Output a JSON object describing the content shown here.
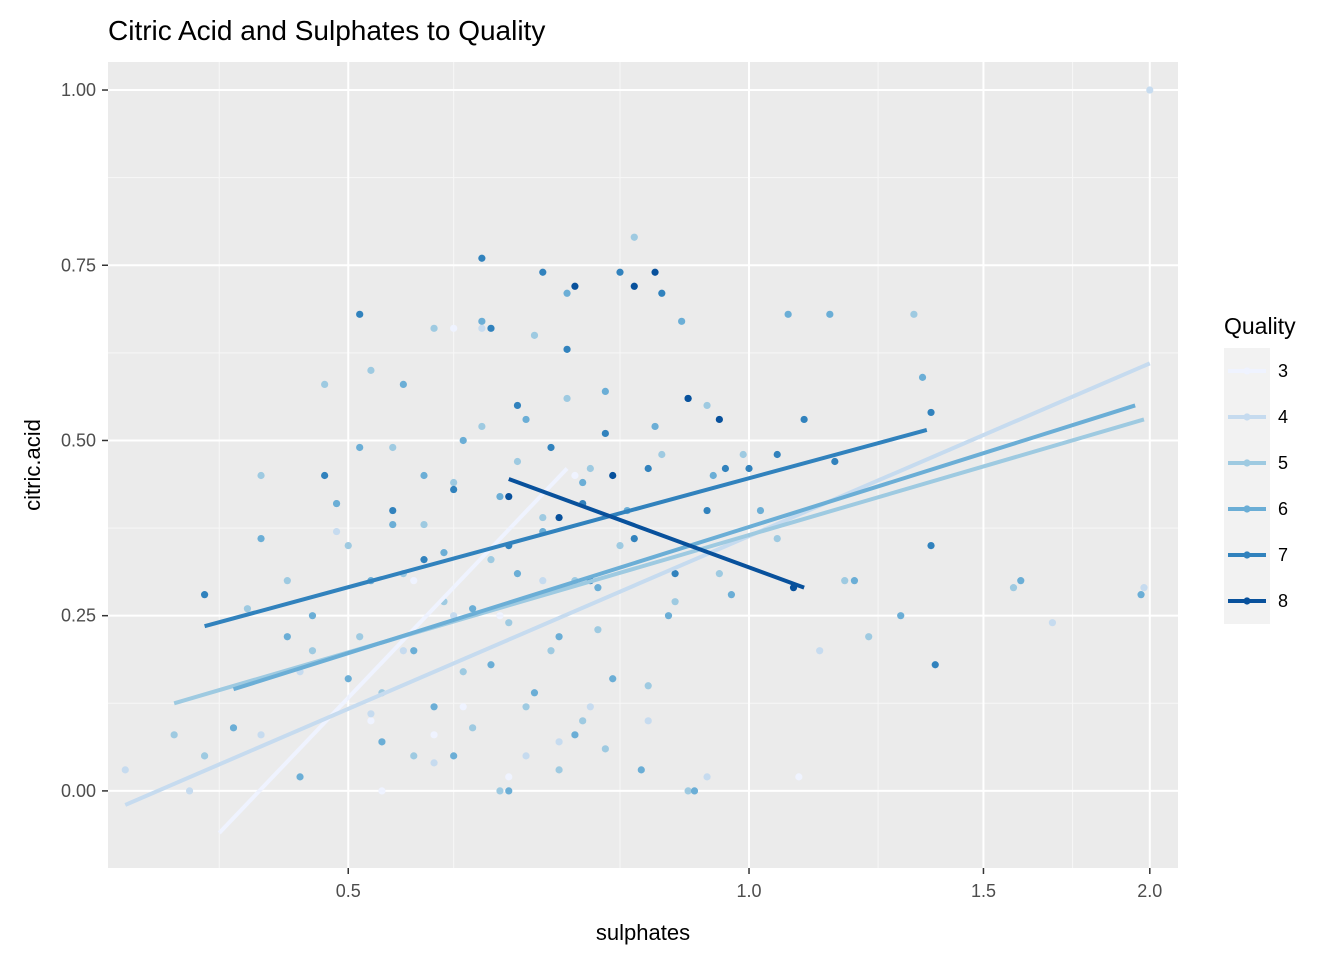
{
  "chart_data": {
    "type": "scatter",
    "title": "Citric Acid and Sulphates to Quality",
    "xlabel": "sulphates",
    "ylabel": "citric.acid",
    "x_scale": "log10",
    "xlim": [
      0.33,
      2.1
    ],
    "ylim": [
      -0.11,
      1.04
    ],
    "x_ticks": [
      0.5,
      1.0,
      1.5,
      2.0
    ],
    "x_tick_labels": [
      "0.5",
      "1.0",
      "1.5",
      "2.0"
    ],
    "x_minor_gridlines": [
      0.4,
      0.6,
      0.8,
      1.25,
      1.75
    ],
    "y_ticks": [
      0.0,
      0.25,
      0.5,
      0.75,
      1.0
    ],
    "y_tick_labels": [
      "0.00",
      "0.25",
      "0.50",
      "0.75",
      "1.00"
    ],
    "grid": true,
    "legend": {
      "title": "Quality",
      "position": "right",
      "entries": [
        "3",
        "4",
        "5",
        "6",
        "7",
        "8"
      ]
    },
    "series": [
      {
        "name": "3",
        "color": "#eff3ff",
        "trend": {
          "x1": 0.4,
          "y1": -0.06,
          "x2": 0.73,
          "y2": 0.46
        },
        "points": [
          [
            0.53,
            0.0
          ],
          [
            0.58,
            0.08
          ],
          [
            0.61,
            0.12
          ],
          [
            0.56,
            0.3
          ],
          [
            0.66,
            0.02
          ],
          [
            0.65,
            0.25
          ],
          [
            0.6,
            0.66
          ],
          [
            0.52,
            0.1
          ],
          [
            0.74,
            0.45
          ],
          [
            1.09,
            0.02
          ]
        ]
      },
      {
        "name": "4",
        "color": "#c6dbef",
        "trend": {
          "x1": 0.34,
          "y1": -0.02,
          "x2": 2.0,
          "y2": 0.61
        },
        "points": [
          [
            0.34,
            0.03
          ],
          [
            0.38,
            0.0
          ],
          [
            0.39,
            0.05
          ],
          [
            0.43,
            0.08
          ],
          [
            0.46,
            0.17
          ],
          [
            0.49,
            0.37
          ],
          [
            0.52,
            0.11
          ],
          [
            0.55,
            0.2
          ],
          [
            0.58,
            0.04
          ],
          [
            0.6,
            0.25
          ],
          [
            0.63,
            0.66
          ],
          [
            0.68,
            0.05
          ],
          [
            0.7,
            0.3
          ],
          [
            0.72,
            0.07
          ],
          [
            0.76,
            0.12
          ],
          [
            0.84,
            0.1
          ],
          [
            0.93,
            0.02
          ],
          [
            1.13,
            0.2
          ],
          [
            1.69,
            0.24
          ],
          [
            1.98,
            0.29
          ],
          [
            2.0,
            1.0
          ]
        ]
      },
      {
        "name": "5",
        "color": "#9ecae1",
        "trend": {
          "x1": 0.37,
          "y1": 0.125,
          "x2": 1.98,
          "y2": 0.53
        },
        "points": [
          [
            0.37,
            0.08
          ],
          [
            0.39,
            0.05
          ],
          [
            0.42,
            0.26
          ],
          [
            0.43,
            0.45
          ],
          [
            0.45,
            0.3
          ],
          [
            0.47,
            0.2
          ],
          [
            0.48,
            0.58
          ],
          [
            0.49,
            0.41
          ],
          [
            0.5,
            0.35
          ],
          [
            0.51,
            0.22
          ],
          [
            0.52,
            0.6
          ],
          [
            0.53,
            0.14
          ],
          [
            0.54,
            0.49
          ],
          [
            0.55,
            0.31
          ],
          [
            0.56,
            0.05
          ],
          [
            0.57,
            0.38
          ],
          [
            0.58,
            0.66
          ],
          [
            0.59,
            0.27
          ],
          [
            0.6,
            0.44
          ],
          [
            0.61,
            0.17
          ],
          [
            0.62,
            0.09
          ],
          [
            0.63,
            0.52
          ],
          [
            0.64,
            0.33
          ],
          [
            0.65,
            0.0
          ],
          [
            0.66,
            0.24
          ],
          [
            0.67,
            0.47
          ],
          [
            0.68,
            0.12
          ],
          [
            0.69,
            0.65
          ],
          [
            0.7,
            0.39
          ],
          [
            0.71,
            0.2
          ],
          [
            0.72,
            0.03
          ],
          [
            0.73,
            0.56
          ],
          [
            0.74,
            0.3
          ],
          [
            0.75,
            0.1
          ],
          [
            0.76,
            0.46
          ],
          [
            0.77,
            0.23
          ],
          [
            0.78,
            0.06
          ],
          [
            0.8,
            0.35
          ],
          [
            0.82,
            0.79
          ],
          [
            0.84,
            0.15
          ],
          [
            0.86,
            0.48
          ],
          [
            0.88,
            0.27
          ],
          [
            0.9,
            0.0
          ],
          [
            0.93,
            0.55
          ],
          [
            0.95,
            0.31
          ],
          [
            0.99,
            0.48
          ],
          [
            1.05,
            0.36
          ],
          [
            1.18,
            0.3
          ],
          [
            1.23,
            0.22
          ],
          [
            1.33,
            0.68
          ],
          [
            1.58,
            0.29
          ]
        ]
      },
      {
        "name": "6",
        "color": "#6baed6",
        "trend": {
          "x1": 0.41,
          "y1": 0.145,
          "x2": 1.95,
          "y2": 0.55
        },
        "points": [
          [
            0.41,
            0.09
          ],
          [
            0.43,
            0.36
          ],
          [
            0.45,
            0.22
          ],
          [
            0.46,
            0.02
          ],
          [
            0.47,
            0.25
          ],
          [
            0.49,
            0.41
          ],
          [
            0.5,
            0.16
          ],
          [
            0.51,
            0.49
          ],
          [
            0.52,
            0.3
          ],
          [
            0.53,
            0.07
          ],
          [
            0.54,
            0.38
          ],
          [
            0.55,
            0.58
          ],
          [
            0.56,
            0.2
          ],
          [
            0.57,
            0.45
          ],
          [
            0.58,
            0.12
          ],
          [
            0.59,
            0.34
          ],
          [
            0.6,
            0.05
          ],
          [
            0.61,
            0.5
          ],
          [
            0.62,
            0.26
          ],
          [
            0.63,
            0.67
          ],
          [
            0.64,
            0.18
          ],
          [
            0.65,
            0.42
          ],
          [
            0.66,
            0.0
          ],
          [
            0.67,
            0.31
          ],
          [
            0.68,
            0.53
          ],
          [
            0.69,
            0.14
          ],
          [
            0.7,
            0.37
          ],
          [
            0.72,
            0.22
          ],
          [
            0.73,
            0.71
          ],
          [
            0.74,
            0.08
          ],
          [
            0.75,
            0.44
          ],
          [
            0.77,
            0.29
          ],
          [
            0.78,
            0.57
          ],
          [
            0.79,
            0.16
          ],
          [
            0.81,
            0.4
          ],
          [
            0.83,
            0.03
          ],
          [
            0.85,
            0.52
          ],
          [
            0.87,
            0.25
          ],
          [
            0.89,
            0.67
          ],
          [
            0.91,
            0.0
          ],
          [
            0.94,
            0.45
          ],
          [
            0.97,
            0.28
          ],
          [
            1.02,
            0.4
          ],
          [
            1.07,
            0.68
          ],
          [
            1.15,
            0.68
          ],
          [
            1.2,
            0.3
          ],
          [
            1.3,
            0.25
          ],
          [
            1.35,
            0.59
          ],
          [
            1.6,
            0.3
          ],
          [
            1.97,
            0.28
          ]
        ]
      },
      {
        "name": "7",
        "color": "#3182bd",
        "trend": {
          "x1": 0.39,
          "y1": 0.235,
          "x2": 1.36,
          "y2": 0.515
        },
        "points": [
          [
            0.39,
            0.28
          ],
          [
            0.48,
            0.45
          ],
          [
            0.51,
            0.68
          ],
          [
            0.54,
            0.4
          ],
          [
            0.57,
            0.33
          ],
          [
            0.6,
            0.43
          ],
          [
            0.63,
            0.76
          ],
          [
            0.64,
            0.66
          ],
          [
            0.66,
            0.35
          ],
          [
            0.67,
            0.55
          ],
          [
            0.7,
            0.74
          ],
          [
            0.71,
            0.49
          ],
          [
            0.73,
            0.63
          ],
          [
            0.75,
            0.41
          ],
          [
            0.76,
            0.3
          ],
          [
            0.78,
            0.51
          ],
          [
            0.8,
            0.74
          ],
          [
            0.82,
            0.36
          ],
          [
            0.84,
            0.46
          ],
          [
            0.86,
            0.71
          ],
          [
            0.88,
            0.31
          ],
          [
            0.9,
            0.56
          ],
          [
            0.93,
            0.4
          ],
          [
            0.96,
            0.46
          ],
          [
            1.0,
            0.46
          ],
          [
            1.05,
            0.48
          ],
          [
            1.1,
            0.53
          ],
          [
            1.16,
            0.47
          ],
          [
            1.37,
            0.35
          ],
          [
            1.38,
            0.18
          ],
          [
            1.37,
            0.54
          ]
        ]
      },
      {
        "name": "8",
        "color": "#08519c",
        "trend": {
          "x1": 0.66,
          "y1": 0.445,
          "x2": 1.1,
          "y2": 0.29
        },
        "points": [
          [
            0.66,
            0.42
          ],
          [
            0.72,
            0.39
          ],
          [
            0.74,
            0.72
          ],
          [
            0.79,
            0.45
          ],
          [
            0.82,
            0.72
          ],
          [
            0.85,
            0.74
          ],
          [
            0.9,
            0.56
          ],
          [
            0.95,
            0.53
          ],
          [
            1.08,
            0.29
          ]
        ]
      }
    ]
  }
}
